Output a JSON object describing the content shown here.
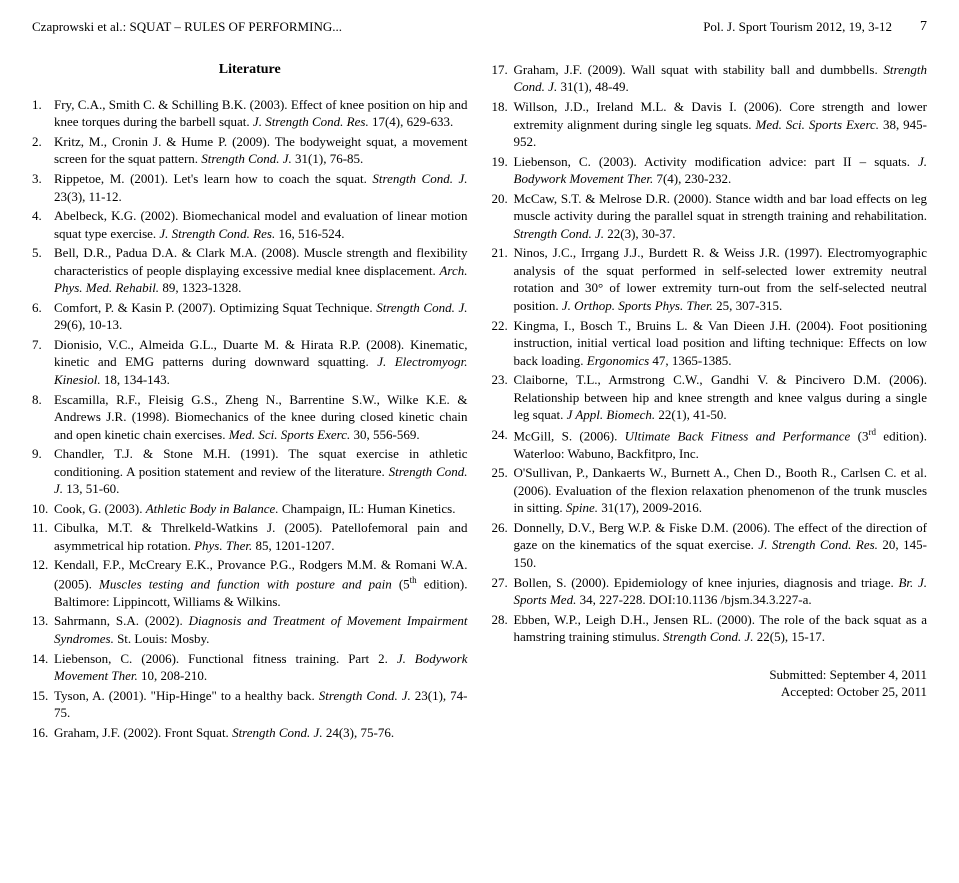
{
  "header": {
    "left": "Czaprowski et al.: SQUAT – RULES OF PERFORMING...",
    "journal": "Pol. J. Sport Tourism 2012, 19, 3-12",
    "page": "7"
  },
  "litTitle": "Literature",
  "leftRefs": [
    {
      "n": "1.",
      "t": "Fry, C.A., Smith C. & Schilling B.K. (2003). Effect of knee position on hip and knee torques during the barbell squat. <i>J. Strength Cond. Res.</i> 17(4), 629-633."
    },
    {
      "n": "2.",
      "t": "Kritz, M., Cronin J. & Hume P. (2009). The bodyweight squat, a movement screen for the squat pattern. <i>Strength Cond. J.</i> 31(1), 76-85."
    },
    {
      "n": "3.",
      "t": "Rippetoe, M. (2001). Let's learn how to coach the squat. <i>Strength Cond. J.</i> 23(3), 11-12."
    },
    {
      "n": "4.",
      "t": "Abelbeck, K.G. (2002). Biomechanical model and evaluation of linear motion squat type exercise. <i>J. Strength Cond. Res.</i> 16, 516-524."
    },
    {
      "n": "5.",
      "t": "Bell, D.R., Padua D.A. & Clark M.A. (2008). Muscle strength and flexibility characteristics of people displaying excessive medial knee displacement. <i>Arch. Phys. Med. Rehabil.</i> 89, 1323-1328."
    },
    {
      "n": "6.",
      "t": "Comfort, P. & Kasin P. (2007). Optimizing Squat Technique. <i>Strength Cond. J.</i> 29(6), 10-13."
    },
    {
      "n": "7.",
      "t": "Dionisio, V.C., Almeida G.L., Duarte M. & Hirata R.P. (2008). Kinematic, kinetic and EMG patterns during downward squatting. <i>J. Electromyogr. Kinesiol.</i> 18, 134-143."
    },
    {
      "n": "8.",
      "t": "Escamilla, R.F., Fleisig G.S., Zheng N., Barrentine S.W., Wilke K.E. & Andrews J.R. (1998). Biomechanics of the knee during closed kinetic chain and open kinetic chain exercises. <i>Med. Sci. Sports Exerc.</i> 30, 556-569."
    },
    {
      "n": "9.",
      "t": "Chandler, T.J. & Stone M.H. (1991). The squat exercise in athletic conditioning. A position statement and review of the literature. <i>Strength Cond. J.</i> 13, 51-60."
    },
    {
      "n": "10.",
      "t": "Cook, G. (2003). <i>Athletic Body in Balance.</i> Champaign, IL: Human Kinetics."
    },
    {
      "n": "11.",
      "t": "Cibulka, M.T. & Threlkeld-Watkins J. (2005). Patellofemoral pain and asymmetrical hip rotation. <i>Phys. Ther.</i> 85, 1201-1207."
    },
    {
      "n": "12.",
      "t": "Kendall, F.P., McCreary E.K., Provance P.G., Rodgers M.M. & Romani W.A. (2005). <i>Muscles testing and function with posture and pain</i> (5<sup>th</sup> edition). Baltimore: Lippincott, Williams & Wilkins."
    },
    {
      "n": "13.",
      "t": "Sahrmann, S.A. (2002). <i>Diagnosis and Treatment of Movement Impairment Syndromes.</i> St. Louis: Mosby."
    },
    {
      "n": "14.",
      "t": "Liebenson, C. (2006). Functional fitness training. Part 2. <i>J. Bodywork Movement Ther.</i> 10, 208-210."
    },
    {
      "n": "15.",
      "t": "Tyson, A. (2001). \"Hip-Hinge\" to a healthy back. <i>Strength Cond. J.</i> 23(1), 74-75."
    },
    {
      "n": "16.",
      "t": "Graham, J.F. (2002). Front Squat. <i>Strength Cond. J.</i> 24(3), 75-76."
    }
  ],
  "rightRefs": [
    {
      "n": "17.",
      "t": "Graham, J.F. (2009). Wall squat with stability ball and dumbbells. <i>Strength Cond. J.</i> 31(1), 48-49."
    },
    {
      "n": "18.",
      "t": "Willson, J.D., Ireland M.L. & Davis I. (2006). Core strength and lower extremity alignment during single leg squats. <i>Med. Sci. Sports Exerc.</i> 38, 945-952."
    },
    {
      "n": "19.",
      "t": "Liebenson, C. (2003). Activity modification advice: part II – squats. <i>J. Bodywork Movement Ther.</i> 7(4), 230-232."
    },
    {
      "n": "20.",
      "t": "McCaw, S.T. & Melrose D.R. (2000). Stance width and bar load effects on leg muscle activity during the parallel squat in strength training and rehabilitation. <i>Strength Cond. J.</i> 22(3), 30-37."
    },
    {
      "n": "21.",
      "t": "Ninos, J.C., Irrgang J.J., Burdett R. & Weiss J.R. (1997). Electromyographic analysis of the squat performed in self-selected lower extremity neutral rotation and 30° of lower extremity turn-out from the self-selected neutral position. <i>J. Orthop. Sports Phys. Ther.</i> 25, 307-315."
    },
    {
      "n": "22.",
      "t": "Kingma, I., Bosch T., Bruins L. & Van Dieen J.H. (2004). Foot positioning instruction, initial vertical load position and lifting technique: Effects on low back loading. <i>Ergonomics</i> 47, 1365-1385."
    },
    {
      "n": "23.",
      "t": "Claiborne, T.L., Armstrong C.W., Gandhi V. & Pincivero D.M. (2006). Relationship between hip and knee strength and knee valgus during a single leg squat. <i>J Appl. Biomech.</i> 22(1), 41-50."
    },
    {
      "n": "24.",
      "t": "McGill, S. (2006). <i>Ultimate Back Fitness and Performance</i> (3<sup>rd</sup> edition). Waterloo: Wabuno, Backfitpro, Inc."
    },
    {
      "n": "25.",
      "t": "O'Sullivan, P., Dankaerts W., Burnett A., Chen D., Booth R., Carlsen C. et al. (2006). Evaluation of the flexion relaxation phenomenon of the trunk muscles in sitting. <i>Spine.</i> 31(17), 2009-2016."
    },
    {
      "n": "26.",
      "t": "Donnelly, D.V., Berg W.P. & Fiske D.M. (2006). The effect of the direction of gaze on the kinematics of the squat exercise. <i>J. Strength Cond. Res.</i> 20, 145-150."
    },
    {
      "n": "27.",
      "t": "Bollen, S. (2000). Epidemiology of knee injuries, diagnosis and triage. <i>Br. J. Sports Med.</i> 34, 227-228. DOI:10.1136 /bjsm.34.3.227-a."
    },
    {
      "n": "28.",
      "t": "Ebben, W.P., Leigh D.H., Jensen RL. (2000). The role of the back squat as a hamstring training stimulus. <i>Strength Cond. J.</i> 22(5), 15-17."
    }
  ],
  "submitted": {
    "line1": "Submitted: September 4, 2011",
    "line2": "Accepted: October 25, 2011"
  }
}
